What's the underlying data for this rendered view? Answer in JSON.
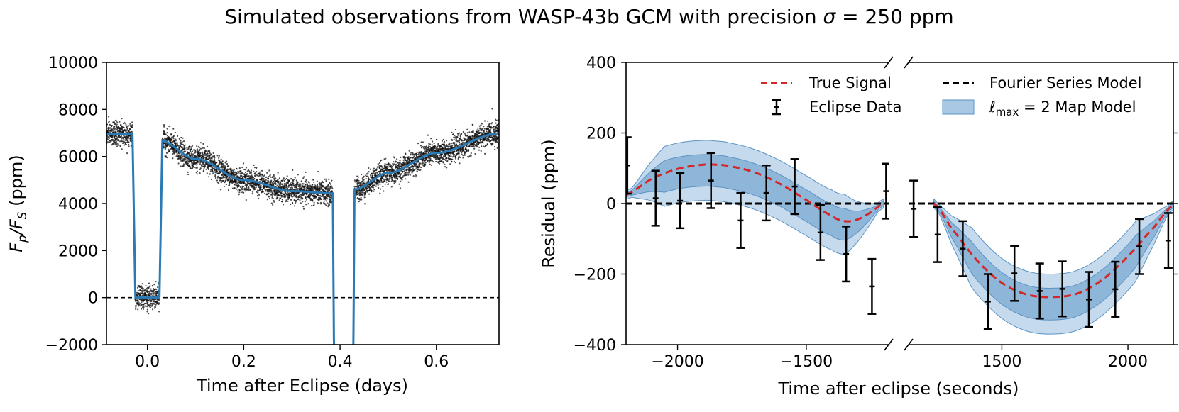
{
  "title": {
    "prefix": "Simulated observations from WASP-43b GCM with precision ",
    "sigma": "σ",
    "eq": " = 250 ppm"
  },
  "colors": {
    "data_points": "#111111",
    "model_line": "#2a7ab5",
    "true_signal": "#d62728",
    "fourier": "#000000",
    "band_outer": "#bcd4ea",
    "band_inner": "#82afd5",
    "band_edge": "#5a93c6"
  },
  "chart_data": [
    {
      "id": "left",
      "type": "scatter",
      "xlabel": "Time after Eclipse (days)",
      "ylabel_main": "F",
      "ylabel_sub1": "p",
      "ylabel_mid": "/F",
      "ylabel_sub2": "S",
      "ylabel_unit": " (ppm)",
      "xlim": [
        -0.085,
        0.73
      ],
      "ylim": [
        -2000,
        10000
      ],
      "xticks": [
        0.0,
        0.2,
        0.4,
        0.6
      ],
      "xtick_labels": [
        "0.0",
        "0.2",
        "0.4",
        "0.6"
      ],
      "yticks": [
        -2000,
        0,
        2000,
        4000,
        6000,
        8000,
        10000
      ],
      "ytick_labels": [
        "−2000",
        "0",
        "2000",
        "4000",
        "6000",
        "8000",
        "10000"
      ],
      "zero_line": 0,
      "noise_ppm": 250,
      "model": {
        "name": "phase-curve model",
        "baseline_start": 6950,
        "eclipse_depth_level": 0,
        "eclipse": [
          -0.025,
          0.025
        ],
        "transit": [
          0.385,
          0.43
        ],
        "phase_points": [
          [
            0.025,
            6700
          ],
          [
            0.1,
            5900
          ],
          [
            0.2,
            5000
          ],
          [
            0.3,
            4530
          ],
          [
            0.385,
            4430
          ],
          [
            0.43,
            4600
          ],
          [
            0.5,
            5300
          ],
          [
            0.6,
            6150
          ],
          [
            0.73,
            6980
          ]
        ]
      }
    },
    {
      "id": "right",
      "type": "line",
      "xlabel": "Time after eclipse (seconds)",
      "ylabel": "Residual (ppm)",
      "ylim": [
        -400,
        400
      ],
      "yticks": [
        -400,
        -200,
        0,
        200,
        400
      ],
      "ytick_labels": [
        "−400",
        "−200",
        "0",
        "200",
        "400"
      ],
      "broken_x_axis": true,
      "segments": [
        {
          "xlim": [
            -2200,
            -1180
          ],
          "xticks": [
            -2000,
            -1500
          ],
          "xtick_labels": [
            "−2000",
            "−1500"
          ],
          "true_signal": [
            [
              -2200,
              25
            ],
            [
              -2100,
              70
            ],
            [
              -2000,
              98
            ],
            [
              -1900,
              110
            ],
            [
              -1850,
              110
            ],
            [
              -1800,
              106
            ],
            [
              -1700,
              88
            ],
            [
              -1600,
              55
            ],
            [
              -1500,
              10
            ],
            [
              -1400,
              -35
            ],
            [
              -1350,
              -50
            ],
            [
              -1300,
              -45
            ],
            [
              -1250,
              -25
            ],
            [
              -1200,
              0
            ]
          ],
          "band_inner_half": 45,
          "band_outer_half": 85,
          "eclipse_data": [
            {
              "x": -2195,
              "y": 108,
              "err": 80
            },
            {
              "x": -2085,
              "y": 15,
              "err": 78
            },
            {
              "x": -1990,
              "y": 8,
              "err": 78
            },
            {
              "x": -1870,
              "y": 65,
              "err": 78
            },
            {
              "x": -1755,
              "y": -48,
              "err": 78
            },
            {
              "x": -1655,
              "y": 30,
              "err": 78
            },
            {
              "x": -1545,
              "y": 48,
              "err": 78
            },
            {
              "x": -1445,
              "y": -82,
              "err": 78
            },
            {
              "x": -1345,
              "y": -143,
              "err": 78
            },
            {
              "x": -1245,
              "y": -235,
              "err": 78
            },
            {
              "x": -1190,
              "y": 35,
              "err": 78
            }
          ]
        },
        {
          "xlim": [
            1130,
            2180
          ],
          "xticks": [
            1500,
            2000
          ],
          "xtick_labels": [
            "1500",
            "2000"
          ],
          "true_signal": [
            [
              1230,
              0
            ],
            [
              1300,
              -70
            ],
            [
              1400,
              -160
            ],
            [
              1500,
              -225
            ],
            [
              1600,
              -258
            ],
            [
              1700,
              -265
            ],
            [
              1800,
              -255
            ],
            [
              1900,
              -215
            ],
            [
              2000,
              -150
            ],
            [
              2100,
              -70
            ],
            [
              2180,
              -5
            ]
          ],
          "band_inner_half": 45,
          "band_outer_half": 85,
          "eclipse_data": [
            {
              "x": 1150,
              "y": -15,
              "err": 80
            },
            {
              "x": 1245,
              "y": -88,
              "err": 78
            },
            {
              "x": 1345,
              "y": -128,
              "err": 78
            },
            {
              "x": 1445,
              "y": -278,
              "err": 78
            },
            {
              "x": 1550,
              "y": -198,
              "err": 78
            },
            {
              "x": 1650,
              "y": -248,
              "err": 78
            },
            {
              "x": 1740,
              "y": -242,
              "err": 78
            },
            {
              "x": 1845,
              "y": -272,
              "err": 78
            },
            {
              "x": 1950,
              "y": -243,
              "err": 78
            },
            {
              "x": 2045,
              "y": -122,
              "err": 78
            },
            {
              "x": 2160,
              "y": -105,
              "err": 78
            }
          ]
        }
      ],
      "fourier_zero": 0,
      "legend": {
        "true_signal": "True Signal",
        "eclipse_data": "Eclipse Data",
        "fourier": "Fourier Series Model",
        "map_prefix": "ℓ",
        "map_sub": "max",
        "map_suffix": " = 2 Map Model"
      }
    }
  ]
}
